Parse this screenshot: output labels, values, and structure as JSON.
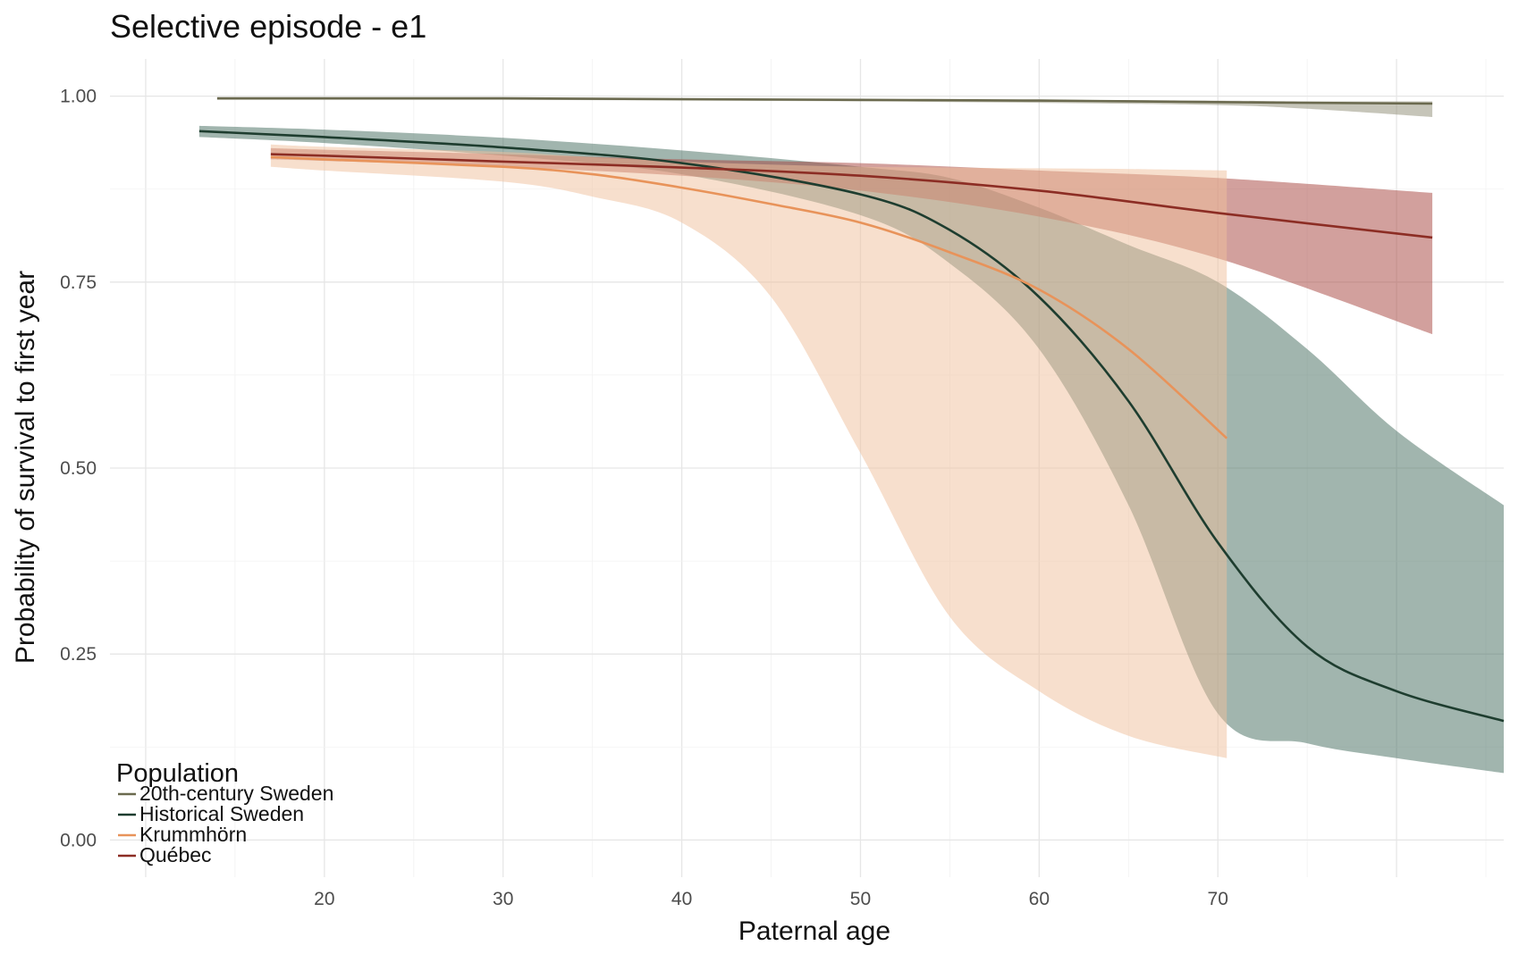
{
  "chart_data": {
    "type": "line",
    "title": "Selective episode - e1",
    "xlabel": "Paternal age",
    "ylabel": "Probability of survival to first year",
    "xlim": [
      8,
      86
    ],
    "ylim": [
      -0.05,
      1.05
    ],
    "x_ticks": [
      20,
      30,
      40,
      50,
      60,
      70
    ],
    "y_ticks": [
      0.0,
      0.25,
      0.5,
      0.75,
      1.0
    ],
    "y_tick_labels": [
      "0.00",
      "0.25",
      "0.50",
      "0.75",
      "1.00"
    ],
    "grid": true,
    "legend": {
      "title": "Population",
      "position": "bottom-left"
    },
    "series": [
      {
        "name": "Historical Sweden",
        "color": "#1e3d2f",
        "band_color": "#446c5d",
        "x": [
          13,
          20,
          30,
          40,
          50,
          55,
          60,
          65,
          70,
          75,
          80,
          86
        ],
        "y": [
          0.953,
          0.945,
          0.931,
          0.91,
          0.868,
          0.82,
          0.73,
          0.59,
          0.4,
          0.26,
          0.2,
          0.16
        ],
        "lower": [
          0.945,
          0.937,
          0.92,
          0.895,
          0.84,
          0.775,
          0.66,
          0.45,
          0.17,
          0.13,
          0.11,
          0.09
        ],
        "upper": [
          0.96,
          0.955,
          0.944,
          0.927,
          0.905,
          0.89,
          0.85,
          0.8,
          0.75,
          0.66,
          0.55,
          0.45
        ]
      },
      {
        "name": "Québec",
        "color": "#8c2d24",
        "band_color": "#a5423c",
        "x": [
          17,
          20,
          30,
          40,
          50,
          60,
          70,
          82
        ],
        "y": [
          0.922,
          0.92,
          0.912,
          0.904,
          0.893,
          0.873,
          0.843,
          0.81
        ],
        "lower": [
          0.915,
          0.913,
          0.905,
          0.893,
          0.873,
          0.838,
          0.782,
          0.68
        ],
        "upper": [
          0.93,
          0.928,
          0.922,
          0.915,
          0.91,
          0.9,
          0.89,
          0.87
        ]
      },
      {
        "name": "Krummhörn",
        "color": "#e8935a",
        "band_color": "#f0c09c",
        "x": [
          17,
          20,
          30,
          35,
          40,
          45,
          50,
          55,
          60,
          65,
          70.5
        ],
        "y": [
          0.918,
          0.915,
          0.905,
          0.895,
          0.877,
          0.855,
          0.83,
          0.79,
          0.74,
          0.66,
          0.54
        ],
        "lower": [
          0.905,
          0.9,
          0.885,
          0.865,
          0.83,
          0.73,
          0.52,
          0.3,
          0.2,
          0.14,
          0.11
        ],
        "upper": [
          0.935,
          0.932,
          0.925,
          0.918,
          0.912,
          0.908,
          0.905,
          0.904,
          0.903,
          0.902,
          0.9
        ]
      },
      {
        "name": "20th-century Sweden",
        "color": "#6b6a4f",
        "band_color": "#8e8b74",
        "x": [
          14,
          20,
          30,
          40,
          50,
          60,
          70,
          75,
          82
        ],
        "y": [
          0.997,
          0.997,
          0.997,
          0.996,
          0.995,
          0.994,
          0.992,
          0.991,
          0.99
        ],
        "lower": [
          0.995,
          0.995,
          0.995,
          0.994,
          0.993,
          0.991,
          0.988,
          0.983,
          0.972
        ],
        "upper": [
          0.998,
          0.998,
          0.998,
          0.997,
          0.996,
          0.995,
          0.994,
          0.993,
          0.993
        ]
      }
    ],
    "legend_order": [
      "20th-century Sweden",
      "Historical Sweden",
      "Krummhörn",
      "Québec"
    ]
  }
}
